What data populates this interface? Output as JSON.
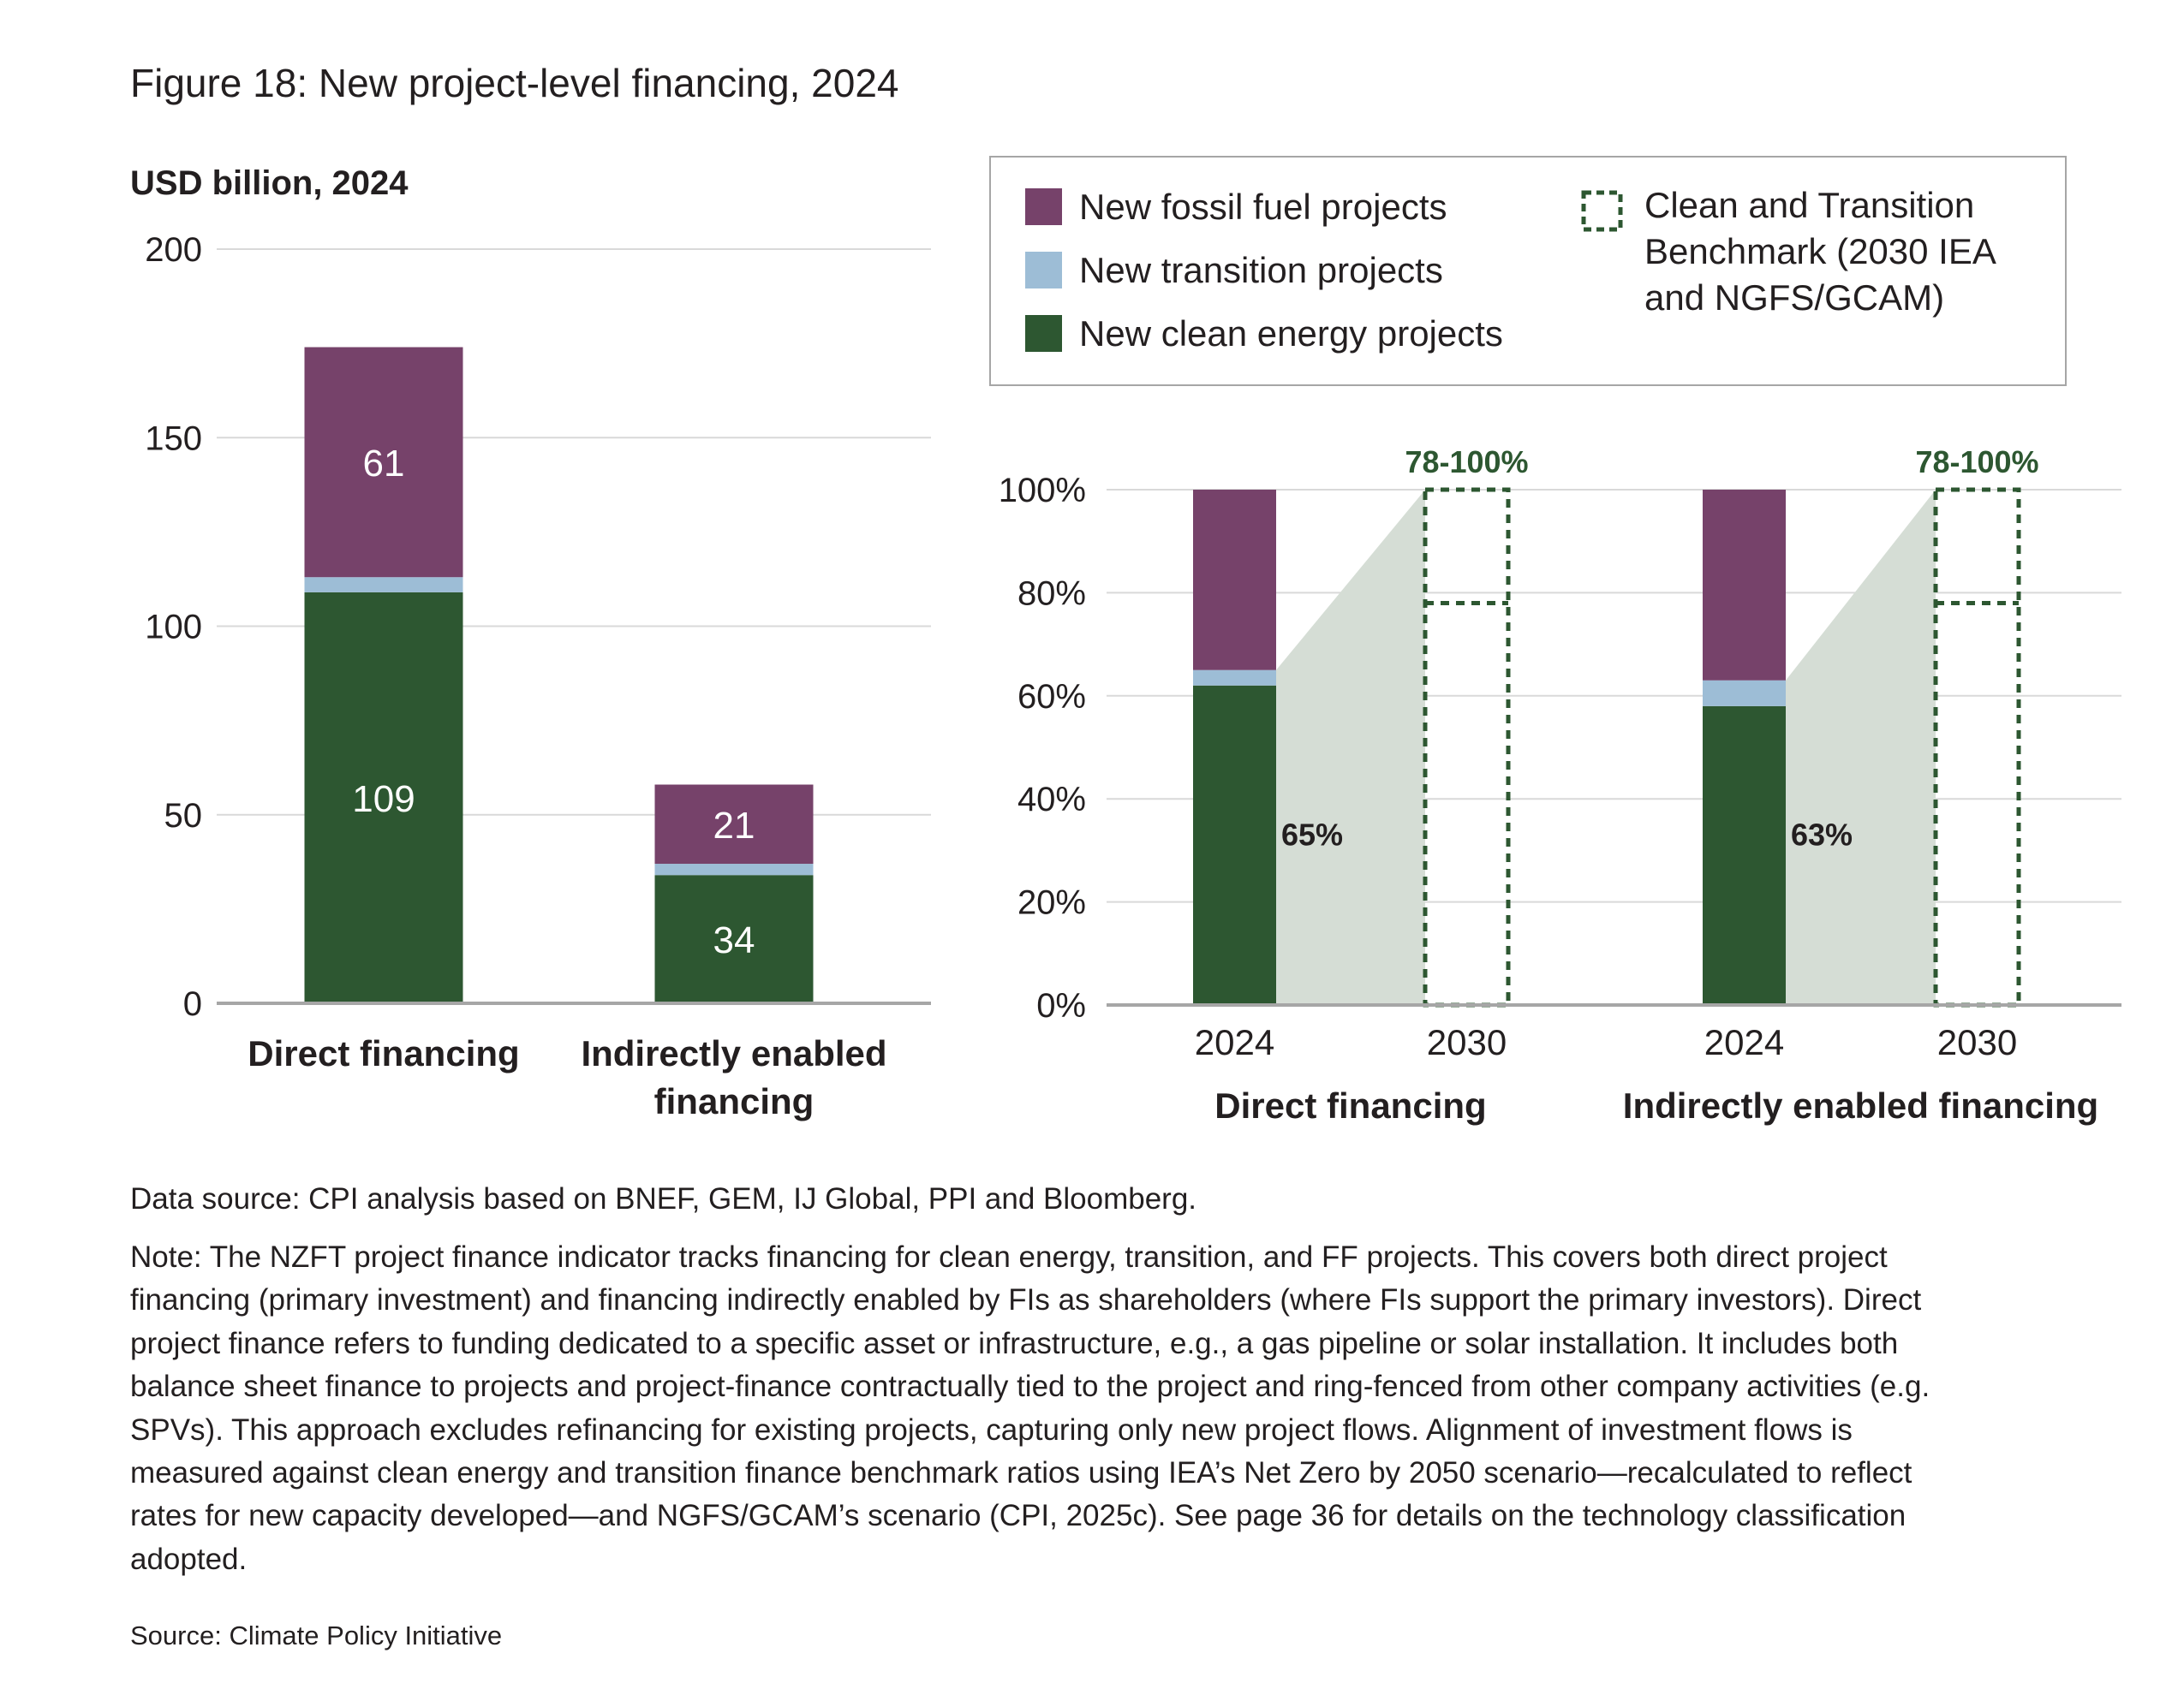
{
  "title": "Figure 18: New project-level financing, 2024",
  "colors": {
    "fossil": "#76426A",
    "transition": "#9DBDD6",
    "clean": "#2D5731",
    "benchmark_shade": "#D5DDD5",
    "benchmark_line": "#2D5731",
    "grid": "#D9D9D9",
    "axis": "#A6A6A6"
  },
  "legend": {
    "items": [
      {
        "label": "New fossil fuel projects",
        "color": "#76426A"
      },
      {
        "label": "New transition projects",
        "color": "#9DBDD6"
      },
      {
        "label": "New clean energy projects",
        "color": "#2D5731"
      }
    ],
    "benchmark_lines": [
      "Clean and Transition",
      "Benchmark (2030 IEA",
      "and NGFS/GCAM)"
    ],
    "benchmark_icon": "dashed-square-icon"
  },
  "chart_data": [
    {
      "type": "bar",
      "stacked": true,
      "ylabel": "USD billion, 2024",
      "ylim": [
        0,
        200
      ],
      "yticks": [
        "0",
        "50",
        "100",
        "150",
        "200"
      ],
      "grid": true,
      "categories": [
        [
          "Direct financing"
        ],
        [
          "Indirectly enabled",
          "financing"
        ]
      ],
      "series": [
        {
          "name": "New clean energy projects",
          "values": [
            109,
            34
          ],
          "labels": [
            "109",
            "34"
          ]
        },
        {
          "name": "New transition projects",
          "values": [
            4,
            3
          ],
          "labels": [
            "",
            ""
          ]
        },
        {
          "name": "New fossil fuel projects",
          "values": [
            61,
            21
          ],
          "labels": [
            "61",
            "21"
          ]
        }
      ]
    },
    {
      "type": "bar",
      "stacked": true,
      "ylim": [
        0,
        100
      ],
      "yticks": [
        "0%",
        "20%",
        "40%",
        "60%",
        "80%",
        "100%"
      ],
      "grid": true,
      "groups": [
        {
          "name": "Direct financing",
          "years": [
            "2024",
            "2030"
          ],
          "clean": 62,
          "transition": 3,
          "fossil": 35,
          "clean_plus_transition_label": "65%",
          "benchmark_range": [
            78,
            100
          ],
          "benchmark_label": "78-100%"
        },
        {
          "name": "Indirectly enabled financing",
          "years": [
            "2024",
            "2030"
          ],
          "clean": 58,
          "transition": 5,
          "fossil": 37,
          "clean_plus_transition_label": "63%",
          "benchmark_range": [
            78,
            100
          ],
          "benchmark_label": "78-100%"
        }
      ]
    }
  ],
  "footer": {
    "data_source": "Data source: CPI analysis based on BNEF, GEM, IJ Global, PPI and Bloomberg.",
    "note_lines": [
      "Note: The NZFT project finance indicator tracks financing for clean energy, transition, and FF projects. This covers both direct project",
      "financing (primary investment) and financing indirectly enabled by FIs as shareholders (where FIs support the primary investors). Direct",
      "project finance refers to funding dedicated to a specific asset or infrastructure, e.g., a gas pipeline or solar installation. It includes both",
      "balance sheet finance to projects and project-finance contractually tied to the project and ring-fenced from other company activities (e.g.",
      "SPVs). This approach excludes refinancing for existing projects, capturing only new project flows. Alignment of investment flows is",
      "measured against clean energy and transition finance benchmark ratios using IEA’s Net Zero by 2050 scenario—recalculated to reflect",
      "rates for new capacity developed—and NGFS/GCAM’s scenario (CPI, 2025c). See page 36 for details on the technology classification",
      "adopted."
    ],
    "source": "Source: Climate Policy Initiative"
  }
}
